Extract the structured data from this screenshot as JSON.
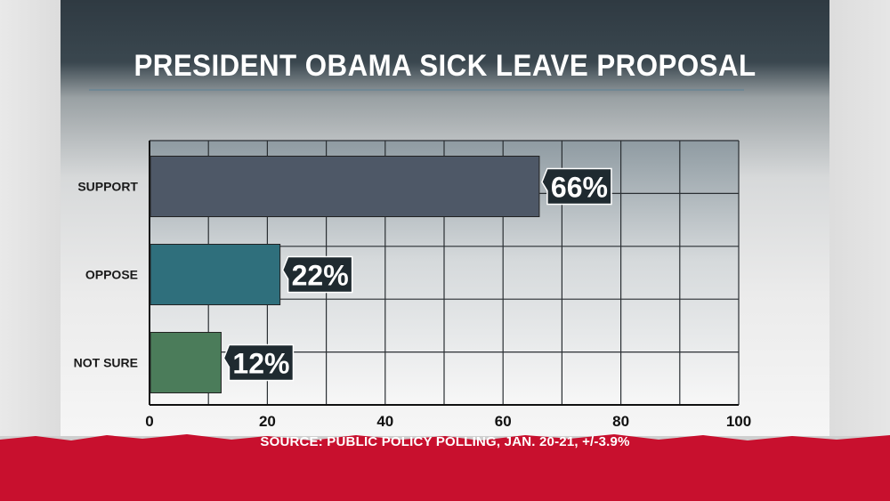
{
  "title": "PRESIDENT OBAMA SICK LEAVE PROPOSAL",
  "source": "SOURCE: PUBLIC POLICY POLLING, JAN. 20-21, +/-3.9%",
  "colors": {
    "support": "#4e5867",
    "oppose": "#2f6f7c",
    "not_sure": "#4b7c5a",
    "label_box": "#1f2a30",
    "footer_red": "#c8102e"
  },
  "chart_data": {
    "type": "bar",
    "orientation": "horizontal",
    "title": "PRESIDENT OBAMA SICK LEAVE PROPOSAL",
    "categories": [
      "SUPPORT",
      "OPPOSE",
      "NOT SURE"
    ],
    "values": [
      66,
      22,
      12
    ],
    "data_labels": [
      "66%",
      "22%",
      "12%"
    ],
    "xlim": [
      0,
      100
    ],
    "xticks": [
      0,
      20,
      40,
      60,
      80,
      100
    ],
    "xtick_labels": [
      "0",
      "20",
      "40",
      "60",
      "80",
      "100"
    ],
    "grid": true,
    "xlabel": "",
    "ylabel": ""
  }
}
